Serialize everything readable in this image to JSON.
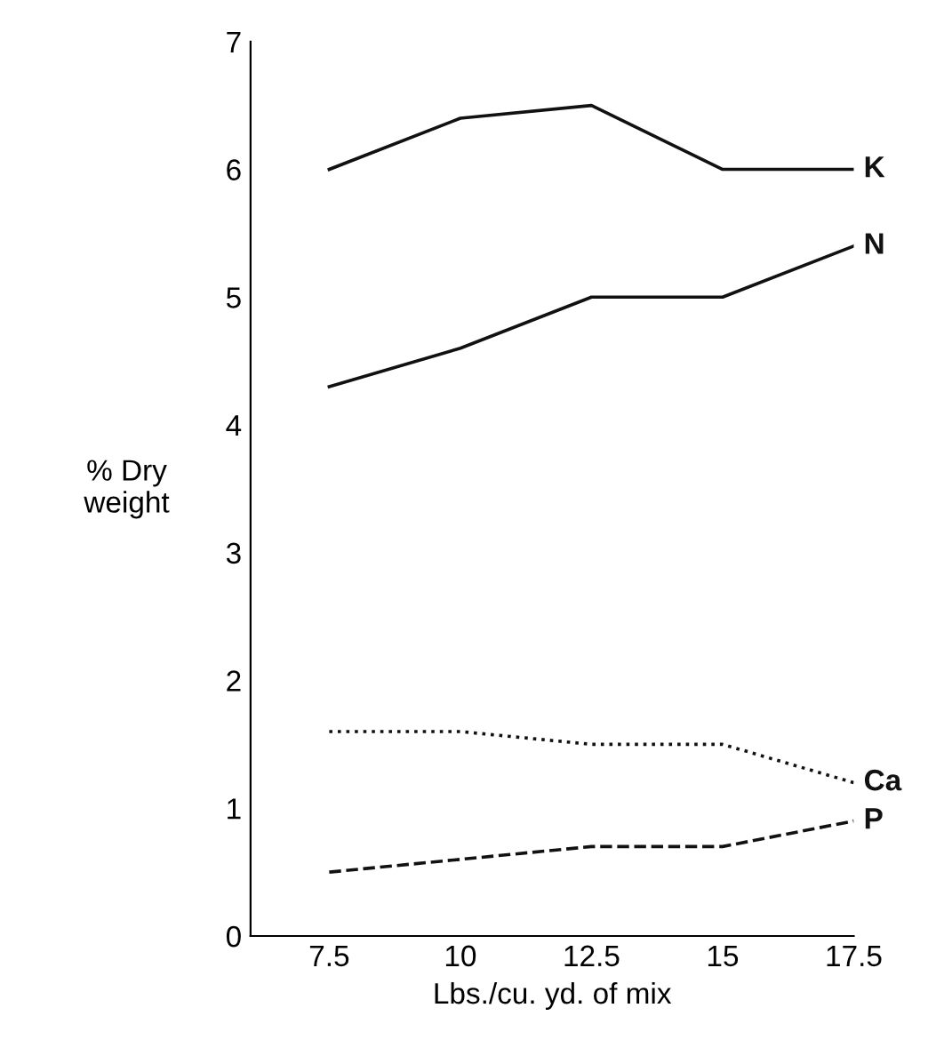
{
  "chart_data": {
    "type": "line",
    "xlabel": "Lbs./cu. yd. of mix",
    "ylabel": "% Dry\nweight",
    "x": [
      7.5,
      10,
      12.5,
      15,
      17.5
    ],
    "xlim": [
      6,
      17.5
    ],
    "xticks": [
      7.5,
      10,
      12.5,
      15,
      17.5
    ],
    "ylim": [
      0,
      7
    ],
    "yticks": [
      0,
      1,
      2,
      3,
      4,
      5,
      6,
      7
    ],
    "grid": false,
    "legend": false,
    "marker": "none",
    "series": [
      {
        "name": "K",
        "color": "#111111",
        "line_style": "solid",
        "values": [
          6.0,
          6.4,
          6.5,
          6.0,
          6.0
        ]
      },
      {
        "name": "N",
        "color": "#111111",
        "line_style": "solid",
        "values": [
          4.3,
          4.6,
          5.0,
          5.0,
          5.4
        ]
      },
      {
        "name": "Ca",
        "color": "#111111",
        "line_style": "dotted",
        "values": [
          1.6,
          1.6,
          1.5,
          1.5,
          1.2
        ]
      },
      {
        "name": "P",
        "color": "#111111",
        "line_style": "dashed",
        "values": [
          0.5,
          0.6,
          0.7,
          0.7,
          0.9
        ]
      }
    ]
  }
}
